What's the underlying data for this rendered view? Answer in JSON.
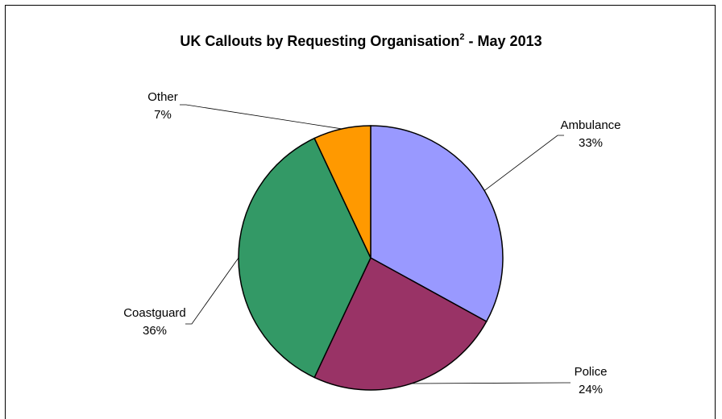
{
  "chart_data": {
    "type": "pie",
    "title": "UK Callouts by Requesting Organisation",
    "title_superscript": "2",
    "title_suffix": " - May 2013",
    "slices": [
      {
        "label": "Ambulance",
        "value": 33,
        "value_label": "33%",
        "color": "#9999ff"
      },
      {
        "label": "Police",
        "value": 24,
        "value_label": "24%",
        "color": "#993366"
      },
      {
        "label": "Coastguard",
        "value": 36,
        "value_label": "36%",
        "color": "#339966"
      },
      {
        "label": "Other",
        "value": 7,
        "value_label": "7%",
        "color": "#ff9900"
      }
    ],
    "start_angle": "12 o'clock",
    "direction": "clockwise",
    "labels_outside": true,
    "leader_lines": true
  }
}
